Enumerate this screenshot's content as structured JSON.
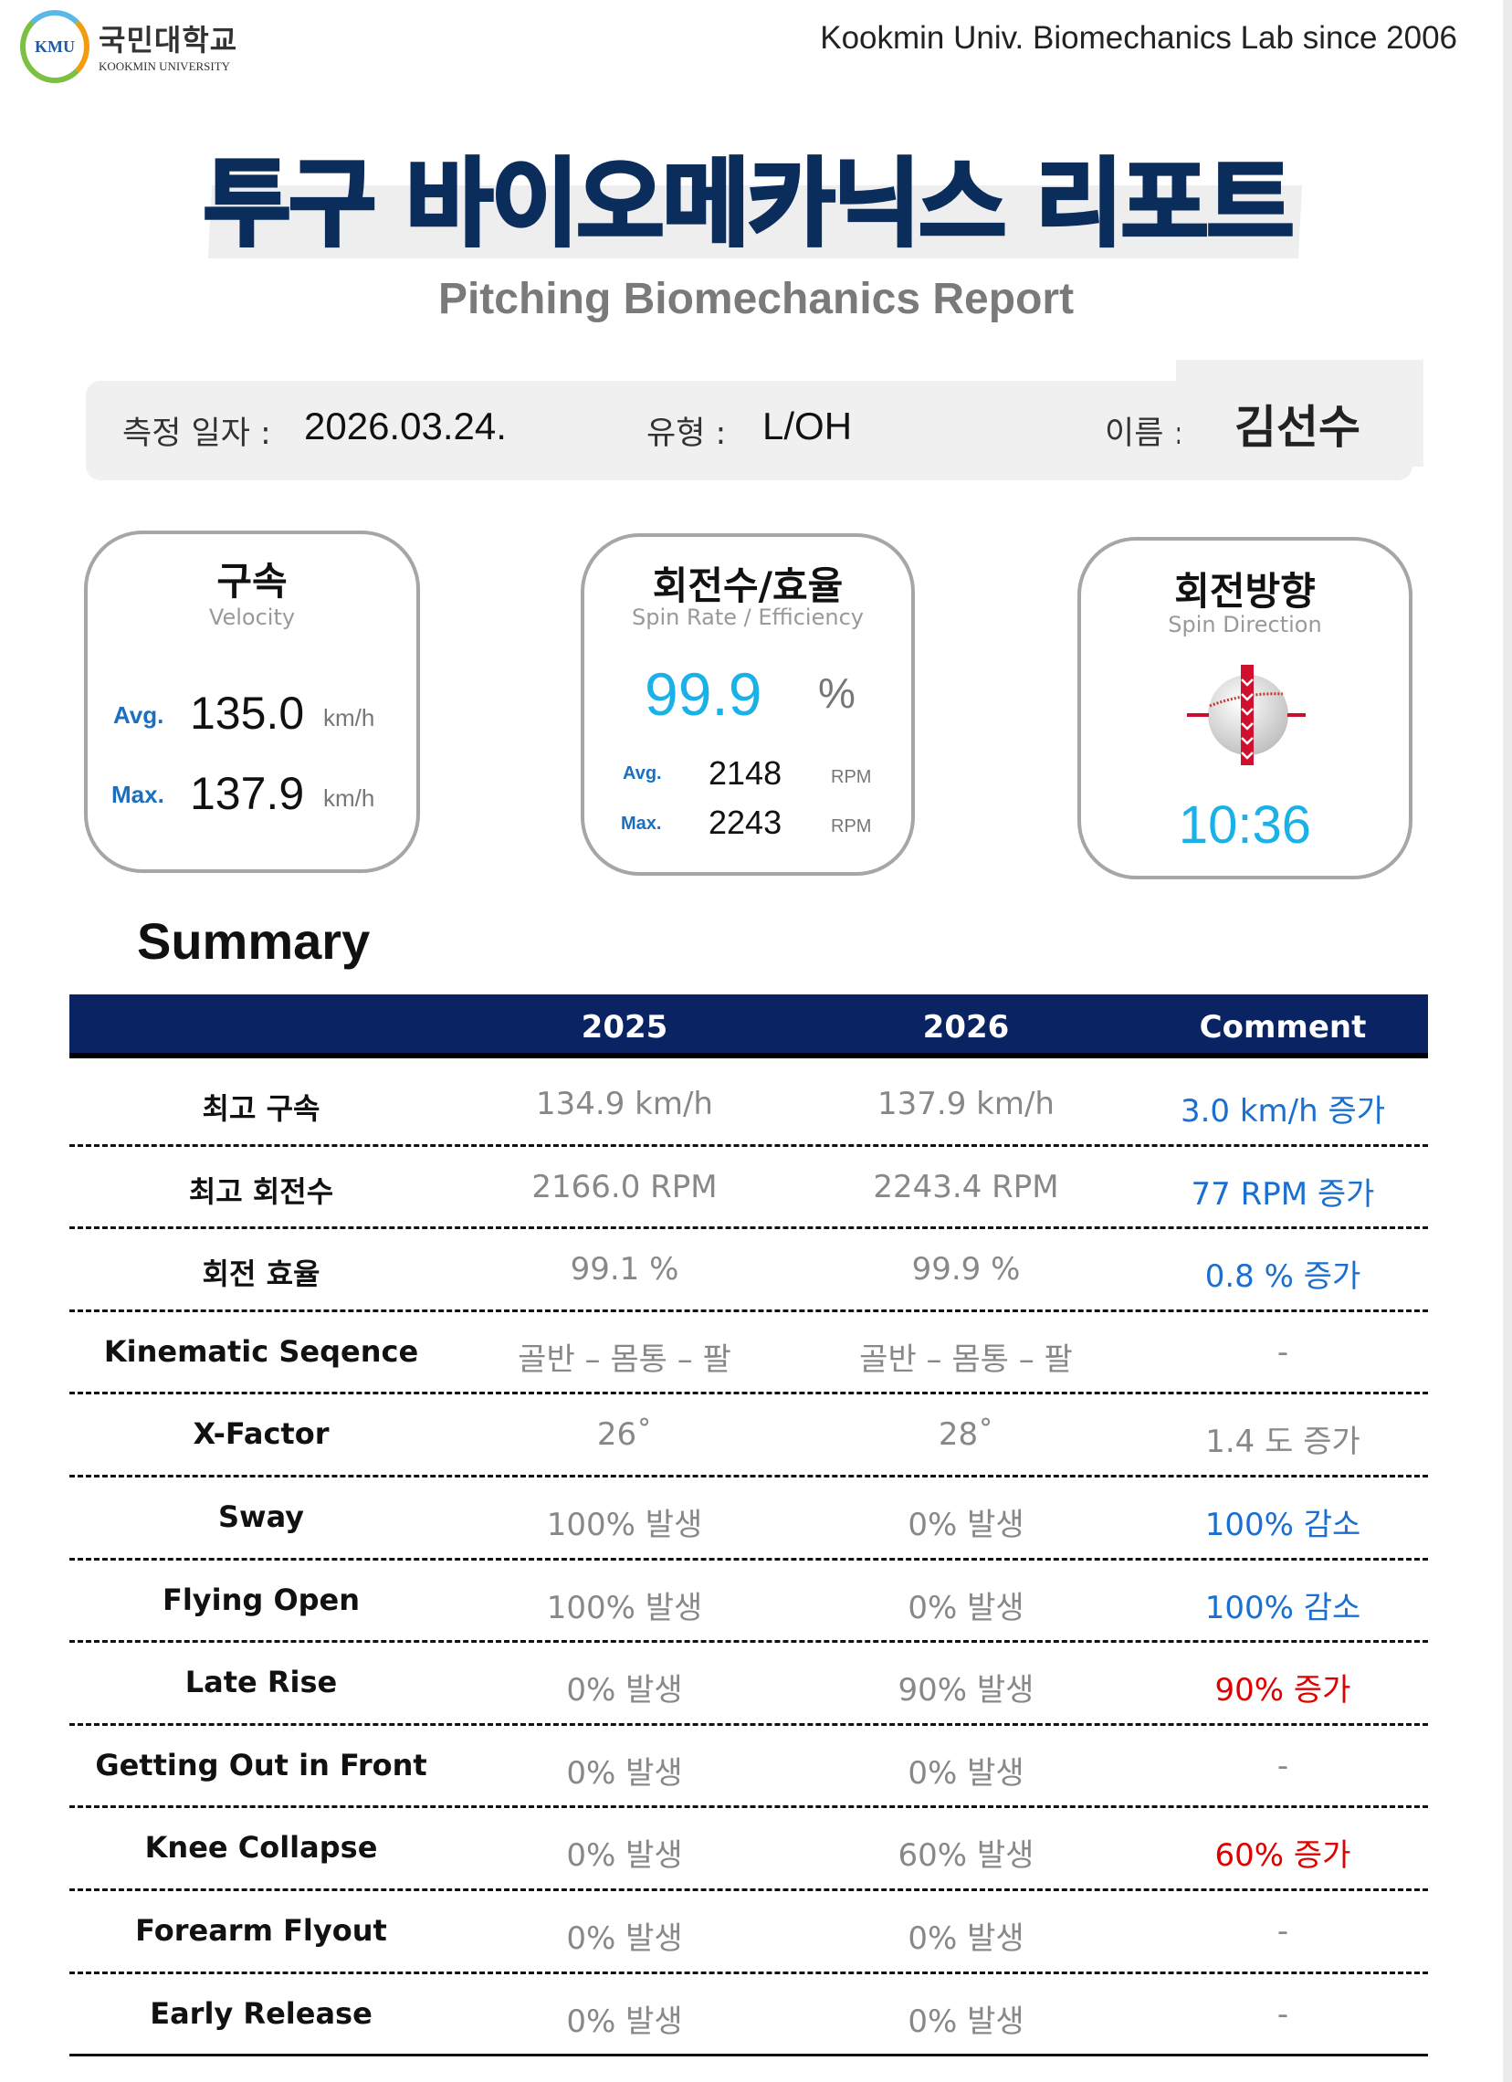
{
  "header": {
    "logo_mark": "KMU",
    "logo_korean": "국민대학교",
    "logo_english": "KOOKMIN UNIVERSITY",
    "lab": "Kookmin Univ. Biomechanics Lab since 2006"
  },
  "title": "투구 바이오메카닉스 리포트",
  "subtitle": "Pitching Biomechanics Report",
  "info": {
    "date_label": "측정 일자 :",
    "date": "2026.03.24.",
    "type_label": "유형 :",
    "type": "L/OH",
    "name_label": "이름 :",
    "name": "김선수"
  },
  "cards": {
    "velocity": {
      "title": "구속",
      "subtitle": "Velocity",
      "avg_label": "Avg.",
      "avg": "135.0",
      "max_label": "Max.",
      "max": "137.9",
      "unit": "km/h"
    },
    "spin": {
      "title": "회전수/효율",
      "subtitle": "Spin Rate / Efficiency",
      "efficiency": "99.9",
      "efficiency_unit": "%",
      "avg_label": "Avg.",
      "avg": "2148",
      "max_label": "Max.",
      "max": "2243",
      "unit": "RPM"
    },
    "direction": {
      "title": "회전방향",
      "subtitle": "Spin Direction",
      "icon": "baseball-spin-axis-icon",
      "value": "10:36"
    }
  },
  "summary": {
    "title": "Summary",
    "columns": [
      "",
      "2025",
      "2026",
      "Comment"
    ],
    "colors": {
      "increase_good": "#1a6fd0",
      "increase_bad": "#e00000",
      "neutral": "#888888",
      "header": "#0a2362"
    },
    "rows": [
      {
        "label": "최고 구속",
        "y2025": "134.9 km/h",
        "y2026": "137.9 km/h",
        "comment": "3.0 km/h 증가",
        "tone": "blue"
      },
      {
        "label": "최고 회전수",
        "y2025": "2166.0 RPM",
        "y2026": "2243.4 RPM",
        "comment": "77 RPM 증가",
        "tone": "blue"
      },
      {
        "label": "회전 효율",
        "y2025": "99.1 %",
        "y2026": "99.9 %",
        "comment": "0.8 % 증가",
        "tone": "blue"
      },
      {
        "label": "Kinematic Seqence",
        "y2025": "골반 – 몸통 – 팔",
        "y2026": "골반 – 몸통 – 팔",
        "comment": "-",
        "tone": "gray"
      },
      {
        "label": "X-Factor",
        "y2025": "26˚",
        "y2026": "28˚",
        "comment": "1.4 도 증가",
        "tone": "gray"
      },
      {
        "label": "Sway",
        "y2025": "100% 발생",
        "y2026": "0% 발생",
        "comment": "100% 감소",
        "tone": "blue"
      },
      {
        "label": "Flying Open",
        "y2025": "100% 발생",
        "y2026": "0% 발생",
        "comment": "100% 감소",
        "tone": "blue"
      },
      {
        "label": "Late Rise",
        "y2025": "0% 발생",
        "y2026": "90% 발생",
        "comment": "90% 증가",
        "tone": "red"
      },
      {
        "label": "Getting Out in Front",
        "y2025": "0% 발생",
        "y2026": "0% 발생",
        "comment": "-",
        "tone": "gray"
      },
      {
        "label": "Knee Collapse",
        "y2025": "0% 발생",
        "y2026": "60% 발생",
        "comment": "60% 증가",
        "tone": "red"
      },
      {
        "label": "Forearm Flyout",
        "y2025": "0% 발생",
        "y2026": "0% 발생",
        "comment": "-",
        "tone": "gray"
      },
      {
        "label": "Early Release",
        "y2025": "0% 발생",
        "y2026": "0% 발생",
        "comment": "-",
        "tone": "gray"
      }
    ]
  }
}
